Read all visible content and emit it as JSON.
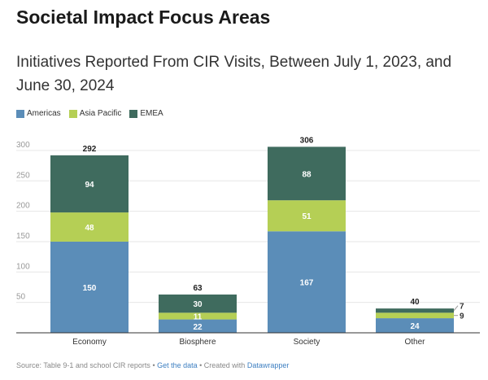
{
  "title": "Societal Impact Focus Areas",
  "subtitle": "Initiatives Reported From CIR Visits, Between July 1, 2023, and June 30, 2024",
  "footer": {
    "source": "Source: Table 9-1 and school CIR reports",
    "sep1": " • ",
    "get_data": "Get the data",
    "sep2": " • Created with ",
    "datawrapper": "Datawrapper"
  },
  "chart_data": {
    "type": "bar",
    "stacked": true,
    "categories": [
      "Economy",
      "Biosphere",
      "Society",
      "Other"
    ],
    "series": [
      {
        "name": "Americas",
        "color": "#5b8db8",
        "values": [
          150,
          22,
          167,
          24
        ]
      },
      {
        "name": "Asia Pacific",
        "color": "#b5cf55",
        "values": [
          48,
          11,
          51,
          9
        ]
      },
      {
        "name": "EMEA",
        "color": "#3f6b5e",
        "values": [
          94,
          30,
          88,
          7
        ]
      }
    ],
    "totals": [
      292,
      63,
      306,
      40
    ],
    "yticks": [
      50,
      100,
      150,
      200,
      250,
      300
    ],
    "ylim": [
      0,
      310
    ],
    "grid": true,
    "legend": "top-left"
  }
}
